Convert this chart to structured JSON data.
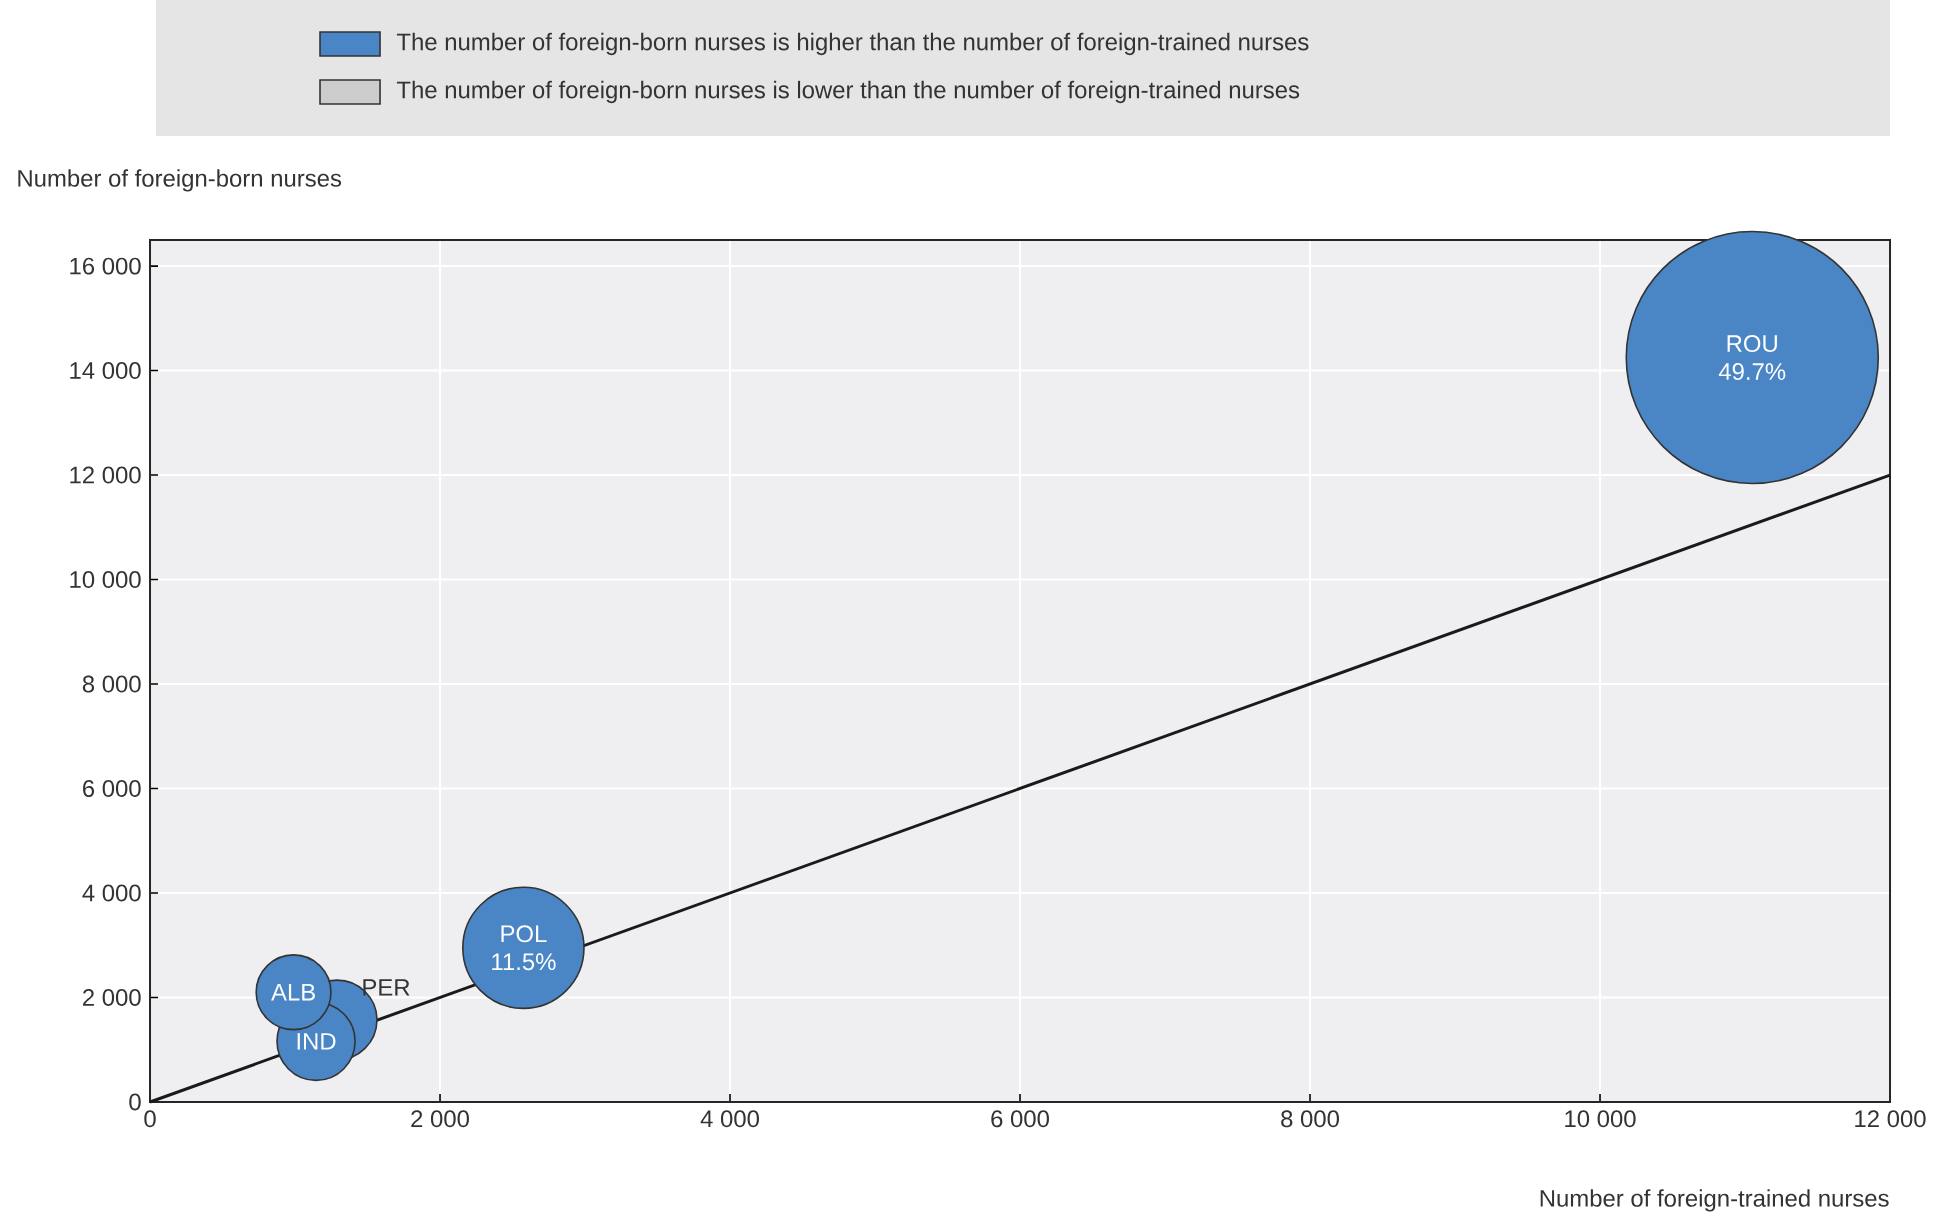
{
  "chart_data": {
    "type": "bubble",
    "xlabel": "Number of foreign-trained nurses",
    "ylabel": "Number of foreign-born nurses",
    "xlim": [
      0,
      12000
    ],
    "ylim": [
      0,
      16500
    ],
    "xticks": [
      0,
      {
        "value": 2000,
        "label": "2 000"
      },
      {
        "value": 4000,
        "label": "4 000"
      },
      {
        "value": 6000,
        "label": "6 000"
      },
      {
        "value": 8000,
        "label": "8 000"
      },
      {
        "value": 10000,
        "label": "10 000"
      },
      {
        "value": 12000,
        "label": "12 000"
      }
    ],
    "yticks": [
      0,
      {
        "value": 2000,
        "label": "2 000"
      },
      {
        "value": 4000,
        "label": "4 000"
      },
      {
        "value": 6000,
        "label": "6 000"
      },
      {
        "value": 8000,
        "label": "8 000"
      },
      {
        "value": 10000,
        "label": "10 000"
      },
      {
        "value": 12000,
        "label": "12 000"
      },
      {
        "value": 14000,
        "label": "14 000"
      },
      {
        "value": 16000,
        "label": "16 000"
      }
    ],
    "grid": true,
    "legend": "top",
    "series": [
      {
        "name": "The number of foreign-born nurses is higher than the number of foreign-trained nurses",
        "color": "#4a86c5",
        "x": [
          11050,
          2575,
          1290,
          1145,
          990
        ],
        "values": [
          14250,
          2950,
          1570,
          1160,
          2100
        ],
        "sizes": [
          1,
          0.231,
          0.1,
          0.096,
          0.088
        ]
      },
      {
        "name": "The number of foreign-born nurses is lower than the number of foreign-trained nurses",
        "color": "#cccccc"
      },
      {
        "type": "line",
        "color": "#1a1a1a",
        "x": [
          0,
          12000
        ],
        "values": [
          0,
          12000
        ]
      }
    ],
    "annotations": [
      {
        "text": "ROU",
        "x": 11050,
        "y": 14250
      },
      {
        "text": "49.7%",
        "x": 11050,
        "y": 14250
      },
      {
        "text": "POL",
        "x": 2575,
        "y": 2950
      },
      {
        "text": "11.5%",
        "x": 2575,
        "y": 2950
      },
      {
        "text": "PER",
        "x": 1290,
        "y": 1570
      },
      {
        "text": "IND",
        "x": 1145,
        "y": 1160
      },
      {
        "text": "ALB",
        "x": 990,
        "y": 2100
      }
    ]
  }
}
